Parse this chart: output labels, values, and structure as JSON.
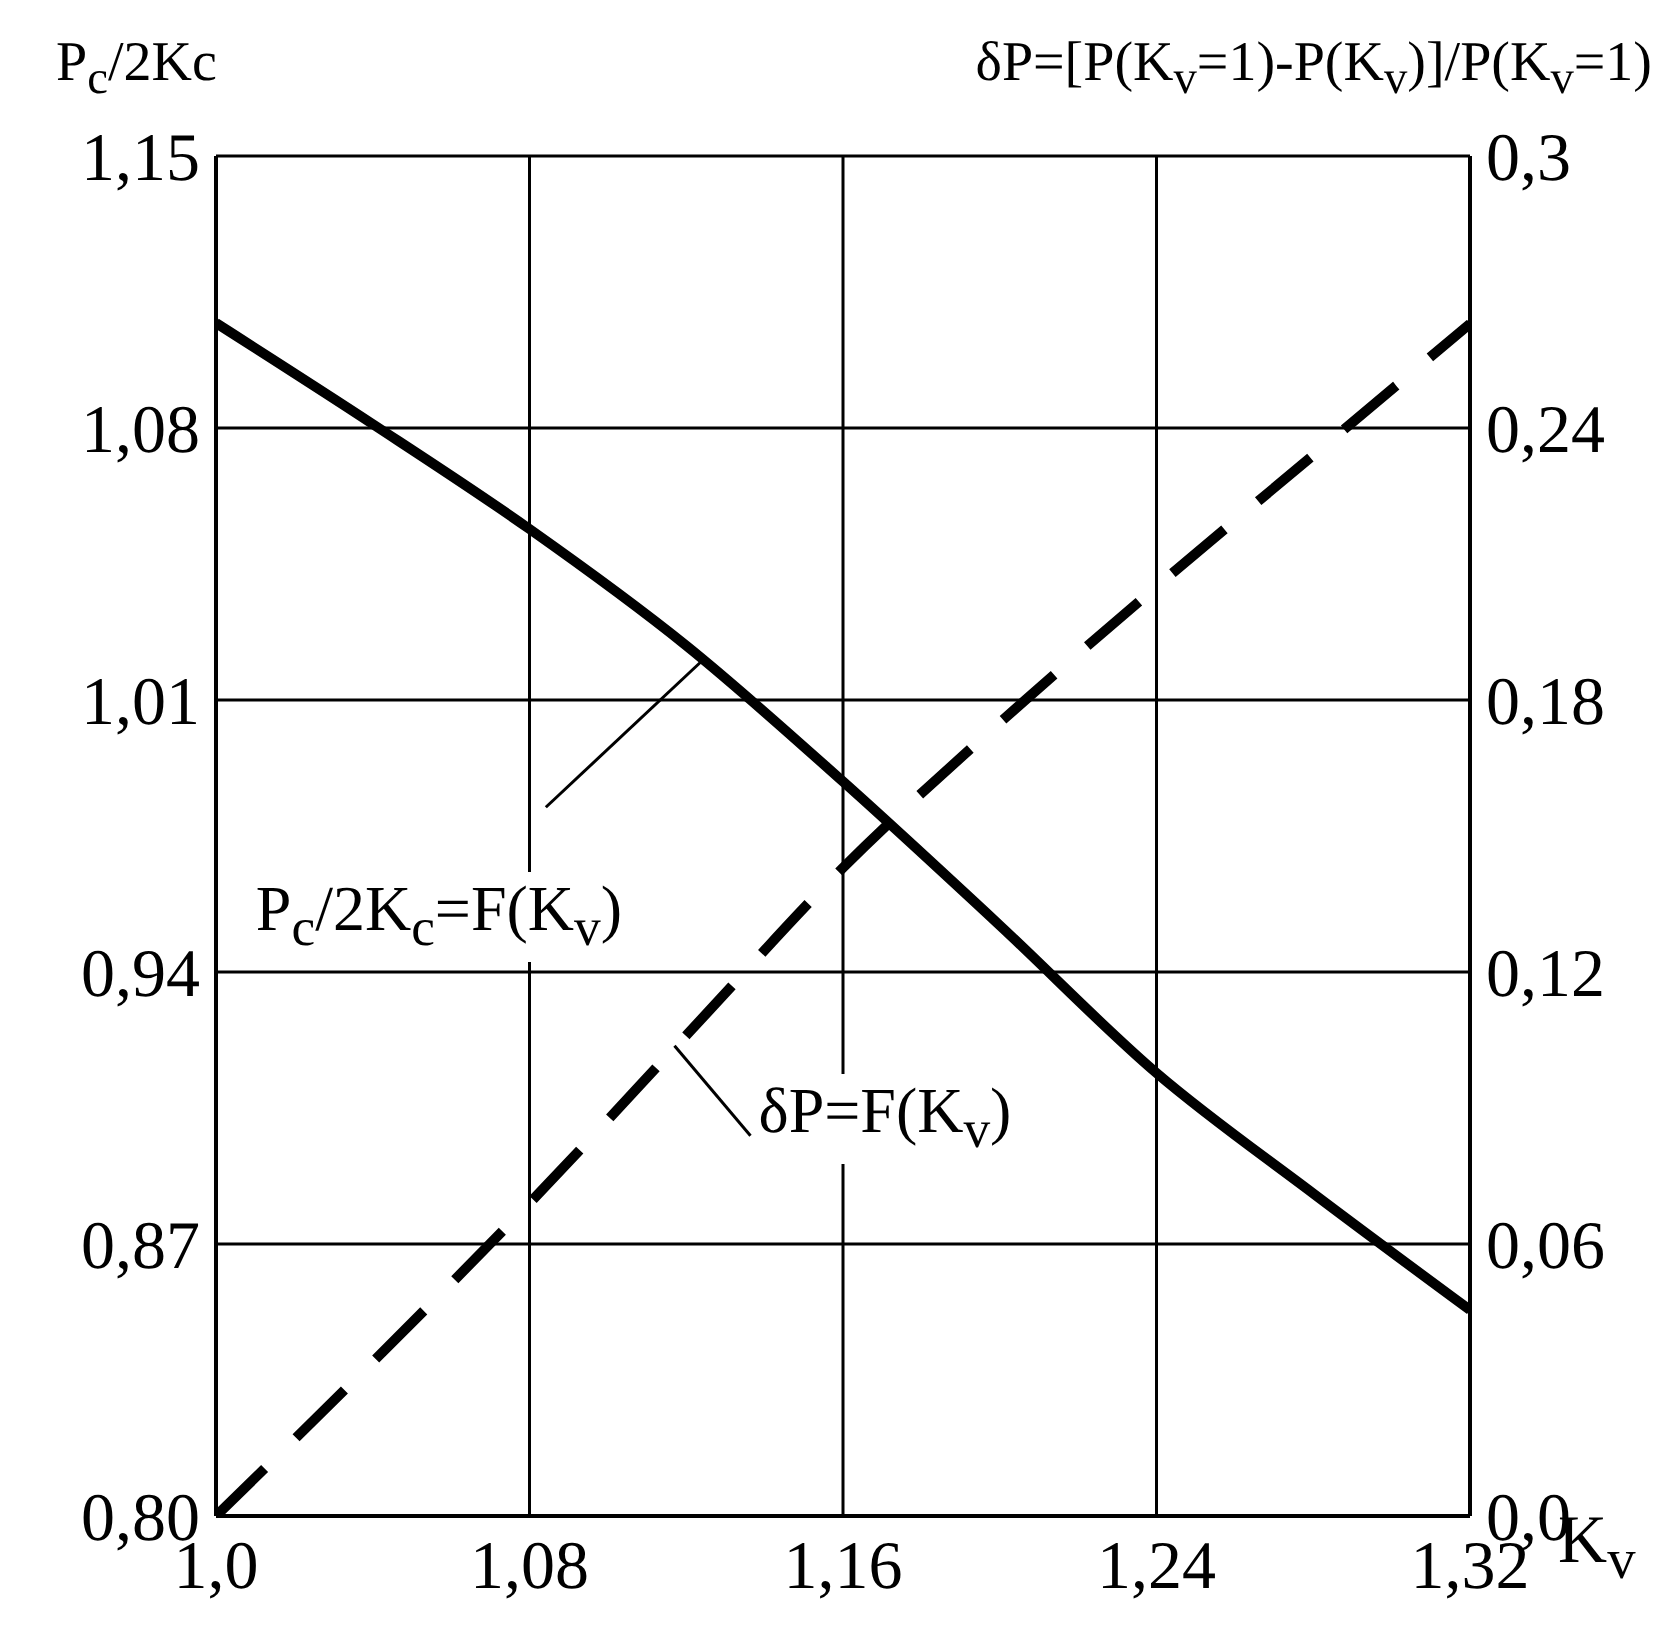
{
  "chart_data": {
    "type": "line",
    "x": [
      1.0,
      1.04,
      1.08,
      1.12,
      1.16,
      1.2,
      1.24,
      1.28,
      1.32
    ],
    "series": [
      {
        "color": "#000000",
        "line_style": "solid",
        "values": [
          1.107,
          1.081,
          1.054,
          1.024,
          0.989,
          0.952,
          0.914,
          0.883,
          0.853
        ]
      },
      {
        "color": "#000000",
        "line_style": "dashed",
        "axis": "y2",
        "values": [
          0.0,
          0.034,
          0.069,
          0.106,
          0.143,
          0.175,
          0.205,
          0.234,
          0.263
        ]
      }
    ],
    "xlabel": "K$_{v}$",
    "ylabel": "P$_{c}$/2Kc",
    "y2label": "δP=[P(K$_{v}$=1)-P(K$_{v}$)]/P(K$_{v}$=1)",
    "annotations": [
      {
        "text": "P$_{c}$/2K$_{c}$=F(K$_{v}$)",
        "x": 1.125,
        "y": 1.021
      },
      {
        "text": "δP=F(K$_{v}$)",
        "x": 1.117,
        "y": 0.921
      }
    ],
    "xlim": [
      1.0,
      1.32
    ],
    "xticks": [
      {
        "value": 1.0,
        "label": "1,0"
      },
      {
        "value": 1.08,
        "label": "1,08"
      },
      {
        "value": 1.16,
        "label": "1,16"
      },
      {
        "value": 1.24,
        "label": "1,24"
      },
      {
        "value": 1.32,
        "label": "1,32"
      }
    ],
    "ylim": [
      0.8,
      1.15
    ],
    "yticks": [
      {
        "value": 0.8,
        "label": "0,80"
      },
      {
        "value": 0.87,
        "label": "0,87"
      },
      {
        "value": 0.94,
        "label": "0,94"
      },
      {
        "value": 1.01,
        "label": "1,01"
      },
      {
        "value": 1.08,
        "label": "1,08"
      },
      {
        "value": 1.15,
        "label": "1,15"
      }
    ],
    "y2lim": [
      0.0,
      0.3
    ],
    "y2ticks": [
      {
        "value": 0.0,
        "label": "0,0"
      },
      {
        "value": 0.06,
        "label": "0,06"
      },
      {
        "value": 0.12,
        "label": "0,12"
      },
      {
        "value": 0.18,
        "label": "0,18"
      },
      {
        "value": 0.24,
        "label": "0,24"
      },
      {
        "value": 0.3,
        "label": "0,3"
      }
    ],
    "grid": true,
    "legend": false,
    "marker": "none"
  }
}
